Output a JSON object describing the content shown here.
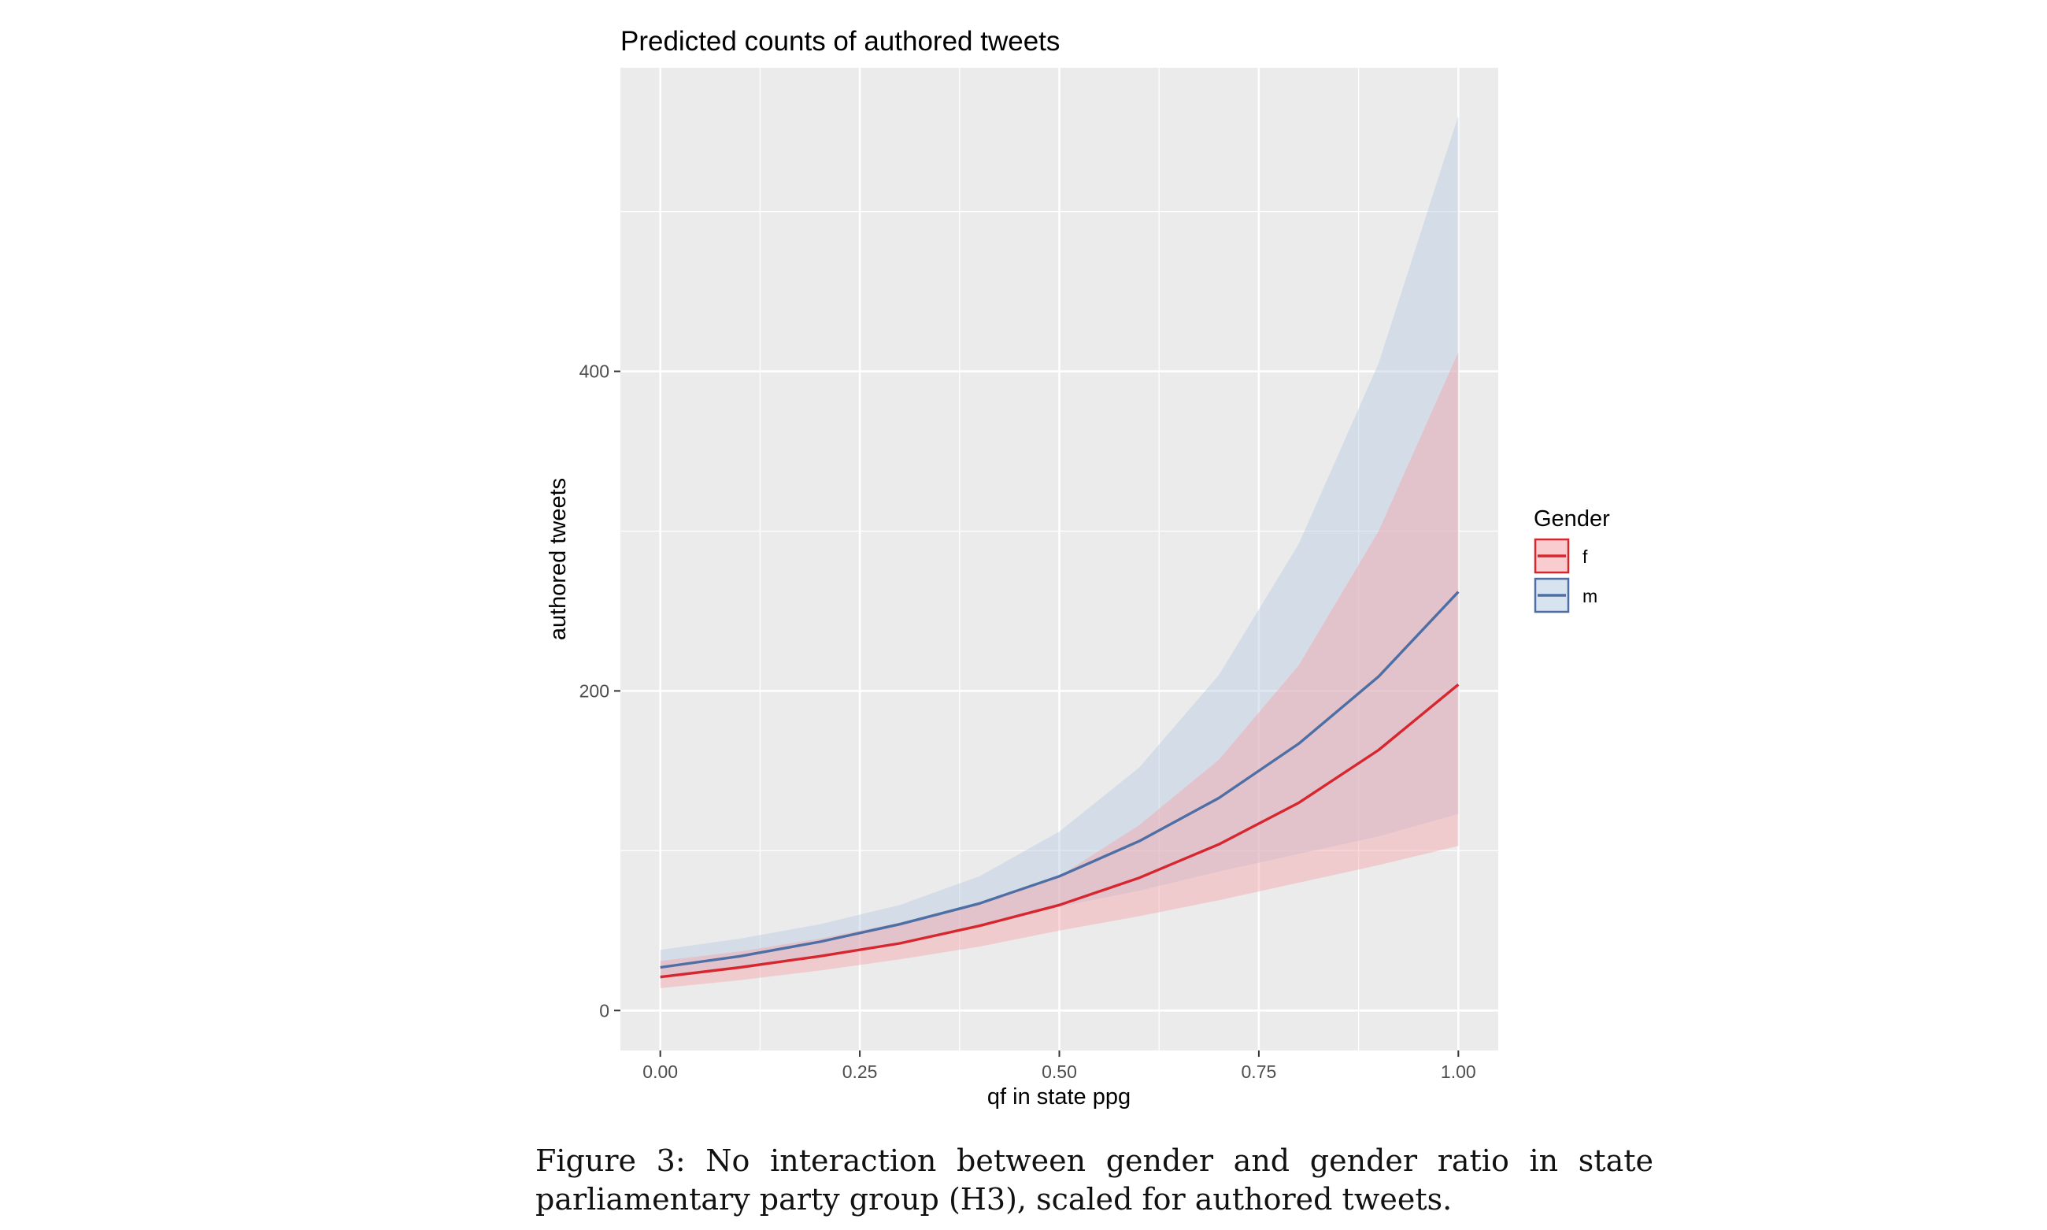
{
  "chart_data": {
    "type": "line",
    "title": "Predicted counts of authored tweets",
    "xlabel": "qf in state ppg",
    "ylabel": "authored tweets",
    "xlim": [
      -0.05,
      1.05
    ],
    "ylim": [
      -25,
      590
    ],
    "x_ticks": [
      0,
      0.25,
      0.5,
      0.75,
      1
    ],
    "x_tick_labels": [
      "0.00",
      "0.25",
      "0.50",
      "0.75",
      "1.00"
    ],
    "y_ticks": [
      0,
      200,
      400
    ],
    "y_tick_labels": [
      "0",
      "200",
      "400"
    ],
    "grid": true,
    "legend": {
      "title": "Gender",
      "position": "right"
    },
    "x": [
      0,
      0.1,
      0.2,
      0.3,
      0.4,
      0.5,
      0.6,
      0.7,
      0.8,
      0.9,
      1.0
    ],
    "series": [
      {
        "name": "f",
        "color": "#d7262e",
        "fill": "#f4a3a8",
        "values": [
          21,
          27,
          34,
          42,
          53,
          66,
          83,
          104,
          130,
          163,
          204
        ],
        "lower": [
          14,
          19,
          25,
          32,
          40,
          50,
          59,
          69,
          80,
          91,
          103
        ],
        "upper": [
          31,
          37,
          45,
          55,
          67,
          84,
          116,
          157,
          216,
          300,
          412
        ]
      },
      {
        "name": "m",
        "color": "#4e6fa5",
        "fill": "#b7cde2",
        "values": [
          27,
          34,
          43,
          54,
          67,
          84,
          106,
          133,
          167,
          209,
          262
        ],
        "lower": [
          20,
          26,
          34,
          43,
          54,
          65,
          75,
          87,
          98,
          109,
          123
        ],
        "upper": [
          38,
          45,
          54,
          66,
          84,
          112,
          152,
          210,
          292,
          405,
          560
        ]
      }
    ]
  },
  "caption": "Figure 3: No interaction between gender and gender ratio in state parliamentary party group (H3), scaled for authored tweets."
}
